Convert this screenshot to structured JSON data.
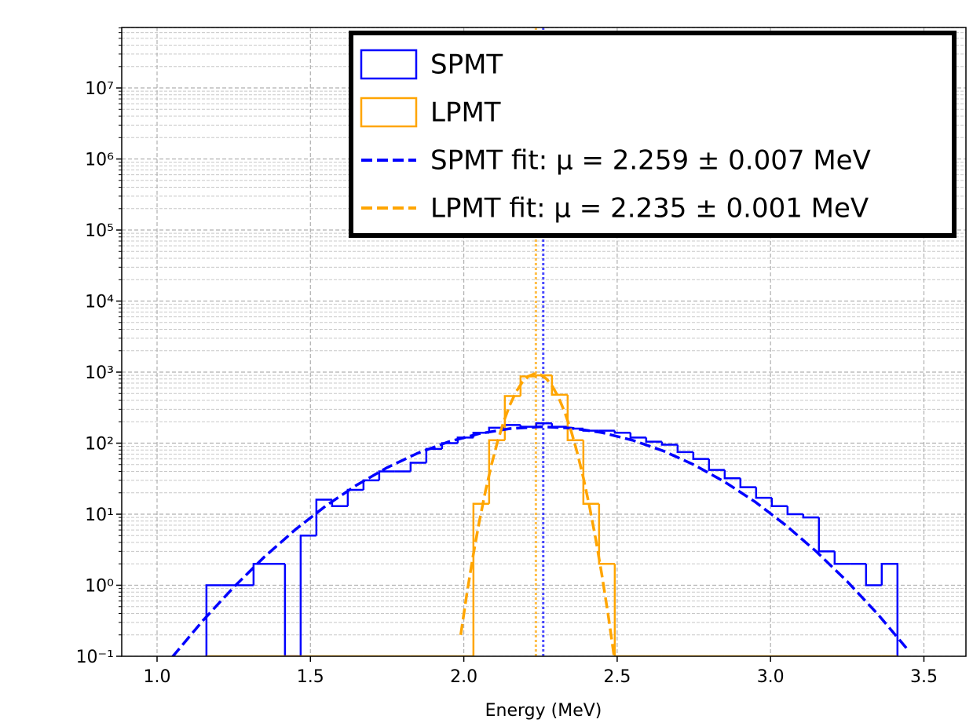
{
  "chart_data": {
    "type": "histogram",
    "x_label": "Energy (MeV)",
    "bins": [
      1.161,
      1.2122,
      1.2634,
      1.3146,
      1.3658,
      1.417,
      1.4682,
      1.5194,
      1.5706,
      1.6218,
      1.673,
      1.7242,
      1.7754,
      1.8266,
      1.8778,
      1.929,
      1.9802,
      2.0314,
      2.0826,
      2.1338,
      2.185,
      2.2362,
      2.2874,
      2.3386,
      2.3898,
      2.441,
      2.4922,
      2.5434,
      2.5946,
      2.6458,
      2.697,
      2.7482,
      2.7994,
      2.8506,
      2.9018,
      2.953,
      3.0042,
      3.0554,
      3.1066,
      3.1578,
      3.209,
      3.2602,
      3.3114,
      3.3626,
      3.4138
    ],
    "series": [
      {
        "name": "SPMT",
        "color": "#0000ff",
        "values": [
          1,
          1,
          1,
          2,
          2,
          0,
          5,
          16,
          13,
          22,
          30,
          40,
          40,
          53,
          83,
          100,
          120,
          140,
          165,
          180,
          170,
          190,
          170,
          160,
          150,
          150,
          140,
          120,
          105,
          95,
          75,
          60,
          42,
          32,
          24,
          17,
          13,
          10,
          9,
          3,
          2,
          2,
          1,
          2
        ]
      },
      {
        "name": "LPMT",
        "color": "#ffa500",
        "values": [
          0,
          0,
          0,
          0,
          0,
          0,
          0,
          0,
          0,
          0,
          0,
          0,
          0,
          0,
          0,
          0,
          0,
          14,
          110,
          460,
          870,
          900,
          480,
          110,
          14,
          2,
          0,
          0,
          0,
          0,
          0,
          0,
          0,
          0,
          0,
          0,
          0,
          0,
          0,
          0,
          0,
          0,
          0,
          0
        ]
      }
    ],
    "fits": [
      {
        "name": "SPMT fit: μ = 2.259 ± 0.007 MeV",
        "color": "#0000ff",
        "x": [
          1.05,
          1.15,
          1.25,
          1.35,
          1.45,
          1.55,
          1.65,
          1.75,
          1.85,
          1.95,
          2.05,
          2.15,
          2.25,
          2.35,
          2.45,
          2.55,
          2.65,
          2.75,
          2.85,
          2.95,
          3.05,
          3.15,
          3.25,
          3.35,
          3.45
        ],
        "values": [
          0.098,
          0.32,
          0.94,
          2.51,
          6.03,
          13.1,
          25.6,
          45.3,
          72.4,
          104.4,
          136,
          160,
          170,
          163,
          141,
          110,
          77.9,
          49.7,
          28.6,
          14.9,
          6.98,
          2.96,
          1.13,
          0.39,
          0.12
        ]
      },
      {
        "name": "LPMT fit: μ = 2.235 ± 0.001 MeV",
        "color": "#ffa500",
        "x": [
          1.99,
          2.01,
          2.03,
          2.05,
          2.07,
          2.09,
          2.11,
          2.13,
          2.15,
          2.17,
          2.19,
          2.21,
          2.23,
          2.25,
          2.27,
          2.29,
          2.31,
          2.33,
          2.35,
          2.37,
          2.39,
          2.41,
          2.43,
          2.45,
          2.47,
          2.49
        ],
        "values": [
          0.2,
          0.76,
          2.56,
          7.67,
          20.5,
          49.2,
          105,
          201,
          343,
          524,
          714,
          870,
          947,
          920,
          800,
          620,
          430,
          266,
          148,
          73,
          32.2,
          12.7,
          4.48,
          1.41,
          0.4,
          0.1
        ]
      }
    ],
    "vlines": [
      {
        "x": 2.259,
        "color": "#0000ff"
      },
      {
        "x": 2.235,
        "color": "#ffa500"
      }
    ],
    "xlim": [
      0.8848,
      3.637
    ],
    "ylim": [
      0.1,
      71000000
    ],
    "xticks": [
      {
        "value": 1,
        "label": "1.0"
      },
      1.5,
      {
        "value": 2,
        "label": "2.0"
      },
      2.5,
      {
        "value": 3,
        "label": "3.0"
      },
      3.5
    ],
    "yticks": [
      {
        "value": 0.1,
        "label": "10⁻¹"
      },
      {
        "value": 1,
        "label": "10⁰"
      },
      {
        "value": 10,
        "label": "10¹"
      },
      {
        "value": 100,
        "label": "10²"
      },
      {
        "value": 1000,
        "label": "10³"
      },
      {
        "value": 10000,
        "label": "10⁴"
      },
      {
        "value": 100000,
        "label": "10⁵"
      },
      {
        "value": 1000000,
        "label": "10⁶"
      },
      {
        "value": 10000000,
        "label": "10⁷"
      }
    ],
    "log_y": true,
    "grid": true,
    "minor_grid": true,
    "legend": "upper right"
  }
}
